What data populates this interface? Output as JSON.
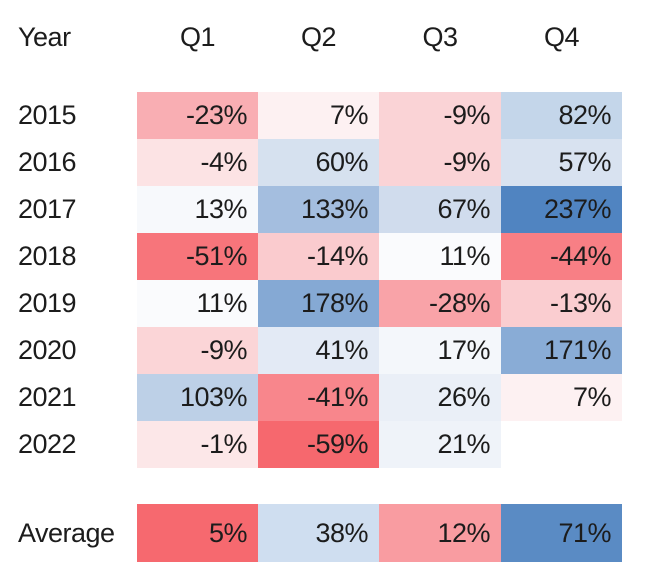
{
  "chart_data": {
    "type": "heatmap",
    "row_axis_label": "Year",
    "columns": [
      "Q1",
      "Q2",
      "Q3",
      "Q4"
    ],
    "rows": [
      {
        "label": "2015",
        "values": [
          -23,
          7,
          -9,
          82
        ],
        "display": [
          "-23%",
          "7%",
          "-9%",
          "82%"
        ],
        "colors": [
          "#F9AEB3",
          "#FDF1F2",
          "#FAD3D6",
          "#C4D6EA"
        ]
      },
      {
        "label": "2016",
        "values": [
          -4,
          60,
          -9,
          57
        ],
        "display": [
          "-4%",
          "60%",
          "-9%",
          "57%"
        ],
        "colors": [
          "#FCE3E4",
          "#D6E1EF",
          "#FAD3D6",
          "#D8E2F0"
        ]
      },
      {
        "label": "2017",
        "values": [
          13,
          133,
          67,
          237
        ],
        "display": [
          "13%",
          "133%",
          "67%",
          "237%"
        ],
        "colors": [
          "#F7F9FC",
          "#A4BEDF",
          "#D0DCED",
          "#5084C1"
        ]
      },
      {
        "label": "2018",
        "values": [
          -51,
          -14,
          11,
          -44
        ],
        "display": [
          "-51%",
          "-14%",
          "11%",
          "-44%"
        ],
        "colors": [
          "#F7757B",
          "#FACBCE",
          "#FAFBFD",
          "#F87F85"
        ]
      },
      {
        "label": "2019",
        "values": [
          11,
          178,
          -28,
          -13
        ],
        "display": [
          "11%",
          "178%",
          "-28%",
          "-13%"
        ],
        "colors": [
          "#FAFBFD",
          "#85A9D4",
          "#F9A3A8",
          "#FACDD0"
        ]
      },
      {
        "label": "2020",
        "values": [
          -9,
          41,
          17,
          171
        ],
        "display": [
          "-9%",
          "41%",
          "17%",
          "171%"
        ],
        "colors": [
          "#FBD5D7",
          "#E3EAF5",
          "#F4F7FB",
          "#89ACD6"
        ]
      },
      {
        "label": "2021",
        "values": [
          103,
          -41,
          26,
          7
        ],
        "display": [
          "103%",
          "-41%",
          "26%",
          "7%"
        ],
        "colors": [
          "#BDD0E7",
          "#F8868C",
          "#EAEFF7",
          "#FDF1F2"
        ]
      },
      {
        "label": "2022",
        "values": [
          -1,
          -59,
          21,
          null
        ],
        "display": [
          "-1%",
          "-59%",
          "21%",
          ""
        ],
        "colors": [
          "#FCE7E8",
          "#F6686E",
          "#EFF3F9",
          null
        ]
      }
    ],
    "summary_row": {
      "label": "Average",
      "values": [
        5,
        38,
        12,
        71
      ],
      "display": [
        "5%",
        "38%",
        "12%",
        "71%"
      ],
      "colors": [
        "#F6696F",
        "#CFDEF0",
        "#F99CA1",
        "#5A8BC4"
      ]
    },
    "palette": {
      "negative_end": "#F6686E",
      "positive_end": "#5084C1",
      "midpoint": "#FFFFFF"
    },
    "legend": "none",
    "grid": false
  }
}
